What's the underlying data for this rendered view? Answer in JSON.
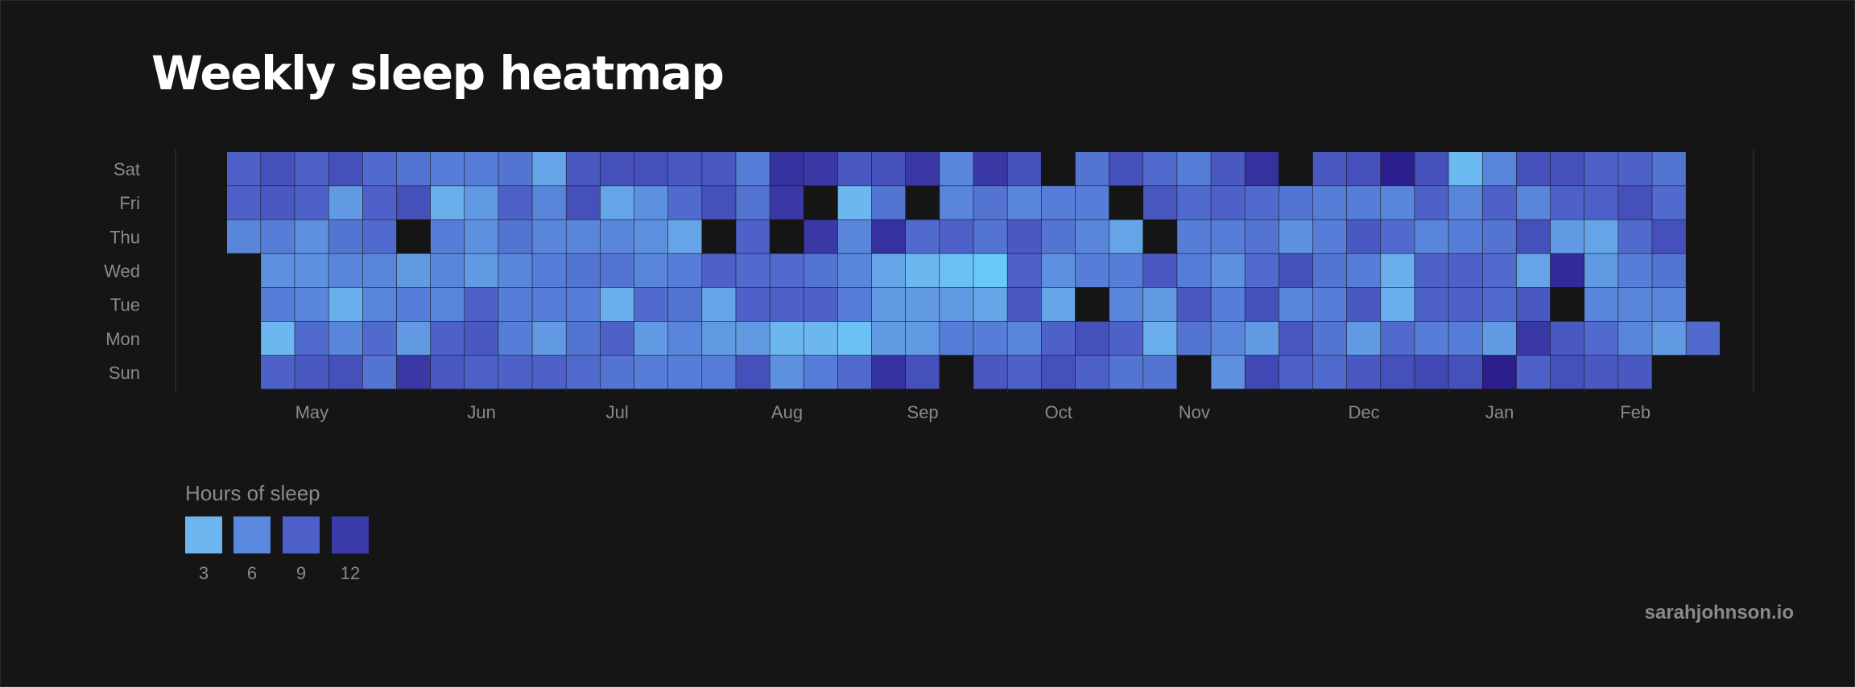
{
  "title": "Weekly sleep heatmap",
  "credit": "sarahjohnson.io",
  "legend": {
    "title": "Hours of sleep",
    "items": [
      {
        "label": "3",
        "color": "#6cb5ee"
      },
      {
        "label": "6",
        "color": "#5a88dc"
      },
      {
        "label": "9",
        "color": "#4d5fc8"
      },
      {
        "label": "12",
        "color": "#3a3aa8"
      }
    ]
  },
  "colors": {
    "background": "#151515",
    "title": "#ffffff",
    "labels": "#8a8a8a",
    "empty_cell": "#121212",
    "scale": [
      "#6ac9fb",
      "#6cb5ee",
      "#5a88dc",
      "#4d5fc8",
      "#3a3aa8",
      "#2a1f8c"
    ]
  },
  "chart_data": {
    "type": "heatmap",
    "title": "Weekly sleep heatmap",
    "value_label": "Hours of sleep",
    "color_scale_range": [
      2,
      13
    ],
    "y_categories": [
      "Sun",
      "Mon",
      "Tue",
      "Wed",
      "Thu",
      "Fri",
      "Sat"
    ],
    "x_month_labels": [
      {
        "label": "May",
        "week": 3
      },
      {
        "label": "Jun",
        "week": 8
      },
      {
        "label": "Jul",
        "week": 12
      },
      {
        "label": "Aug",
        "week": 17
      },
      {
        "label": "Sep",
        "week": 21
      },
      {
        "label": "Oct",
        "week": 25
      },
      {
        "label": "Nov",
        "week": 29
      },
      {
        "label": "Dec",
        "week": 34
      },
      {
        "label": "Jan",
        "week": 38
      },
      {
        "label": "Feb",
        "week": 42
      }
    ],
    "x_range_weeks": [
      -1.5,
      44.5
    ],
    "week_count": 44,
    "start_week_offset": 0,
    "note": "values[week][dayIndex], dayIndex 0=Sun..6=Sat; null = missing",
    "values": [
      [
        null,
        null,
        null,
        null,
        6.5,
        8.5,
        8.5
      ],
      [
        8.5,
        4,
        7,
        6,
        7,
        9,
        9.5
      ],
      [
        9,
        8,
        6.5,
        6,
        6,
        8.5,
        8.5
      ],
      [
        9.5,
        6.5,
        4.5,
        6.5,
        7.5,
        5.5,
        9.5
      ],
      [
        7.5,
        8,
        6.5,
        6.5,
        8,
        8.5,
        8
      ],
      [
        11,
        5.5,
        7,
        5.5,
        null,
        9.5,
        7.5
      ],
      [
        9,
        8.5,
        6.5,
        6.5,
        7,
        4.5,
        7
      ],
      [
        8.5,
        9,
        8.5,
        5.5,
        6,
        5.5,
        7
      ],
      [
        8.5,
        7,
        7,
        6.5,
        7.5,
        8.5,
        7.5
      ],
      [
        8.5,
        5.5,
        7,
        7,
        6.5,
        6.5,
        5
      ],
      [
        8,
        7.5,
        7,
        7.5,
        6.5,
        9.5,
        9
      ],
      [
        7.5,
        8.5,
        4.5,
        7.5,
        6.5,
        5,
        9.5
      ],
      [
        7,
        5.5,
        8,
        6.5,
        6,
        6,
        9.5
      ],
      [
        7,
        6.5,
        7.5,
        7,
        5,
        8,
        9
      ],
      [
        7,
        5.5,
        5,
        8.5,
        null,
        9.5,
        9
      ],
      [
        9.5,
        5.5,
        8.5,
        8,
        8.5,
        7.5,
        7
      ],
      [
        6,
        4,
        8.5,
        8,
        null,
        11,
        11.5
      ],
      [
        7,
        4,
        8.5,
        7.5,
        11,
        null,
        11
      ],
      [
        8,
        3,
        7,
        6.5,
        6.5,
        4,
        9
      ],
      [
        11.5,
        5.5,
        5.5,
        5,
        11.5,
        7.5,
        9.5
      ],
      [
        9.5,
        5.5,
        5.5,
        4,
        8,
        null,
        11
      ],
      [
        null,
        7,
        5.5,
        3,
        8.5,
        6.5,
        6.5
      ],
      [
        9,
        7,
        5,
        2,
        7.5,
        7.5,
        11
      ],
      [
        8.5,
        6.5,
        9,
        8.5,
        9,
        6.5,
        9.5
      ],
      [
        9.5,
        8.5,
        5,
        6,
        7.5,
        7,
        null
      ],
      [
        8.5,
        9.5,
        null,
        7,
        6.5,
        7,
        7.5
      ],
      [
        7.5,
        8.5,
        6.5,
        7,
        5,
        null,
        9.5
      ],
      [
        7.5,
        4.5,
        5.5,
        9,
        null,
        9,
        8
      ],
      [
        null,
        7.5,
        9,
        7,
        7,
        8,
        7
      ],
      [
        6,
        6.5,
        7,
        6,
        7,
        8.5,
        9
      ],
      [
        10,
        5.5,
        9.5,
        8,
        7.5,
        8,
        11.5
      ],
      [
        8.5,
        9,
        6.5,
        9.5,
        6,
        7.5,
        null
      ],
      [
        8,
        7.5,
        7,
        7.5,
        7,
        7,
        9
      ],
      [
        9,
        5.5,
        9,
        7,
        9,
        7,
        9.5
      ],
      [
        9.5,
        8,
        4.5,
        4.5,
        8,
        6.5,
        13
      ],
      [
        10,
        7,
        8.5,
        8.5,
        6.5,
        8.5,
        9.5
      ],
      [
        9.5,
        7,
        8.5,
        8.5,
        7,
        6.5,
        3.5
      ],
      [
        13,
        5.5,
        8,
        8,
        7.5,
        8.5,
        6.5
      ],
      [
        8.5,
        11,
        9,
        5,
        9.5,
        6.5,
        9.5
      ],
      [
        9.5,
        9,
        null,
        12,
        5.5,
        8.5,
        9.5
      ],
      [
        9,
        8,
        6.5,
        5.5,
        5,
        8.5,
        8.5
      ],
      [
        9,
        6.5,
        6.5,
        7,
        8,
        9.5,
        8.5
      ],
      [
        null,
        5.5,
        6.5,
        7.5,
        9.5,
        8,
        7.5
      ],
      [
        null,
        8,
        null,
        null,
        null,
        null,
        null
      ]
    ]
  }
}
